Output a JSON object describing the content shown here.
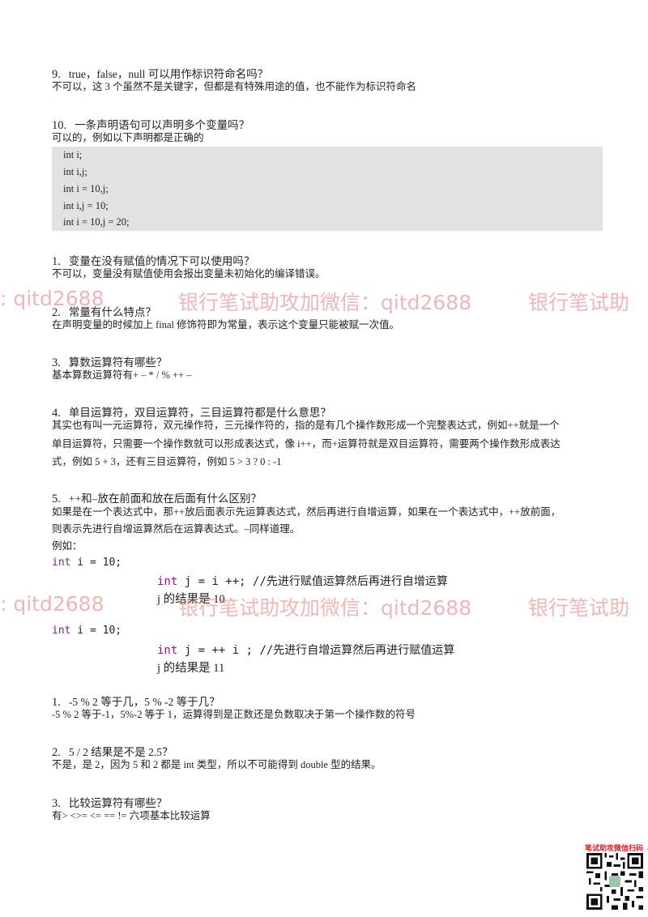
{
  "sections": [
    {
      "num": "9.",
      "q": "true，false，null 可以用作标识符命名吗？",
      "a": "不可以，这 3 个虽然不是关键字，但都是有特殊用途的值，也不能作为标识符命名"
    },
    {
      "num": "10.",
      "q": "一条声明语句可以声明多个变量吗？",
      "a": "可以的，例如以下声明都是正确的",
      "code": [
        "int i;",
        "int i,j;",
        "int i = 10,j;",
        "int i,j = 10;",
        "int i = 10,j = 20;"
      ]
    },
    {
      "num": "1.",
      "q": "变量在没有赋值的情况下可以使用吗？",
      "a": "不可以，变量没有赋值使用会报出变量未初始化的编译错误。"
    },
    {
      "num": "2.",
      "q": "常量有什么特点？",
      "a": "在声明变量的时候加上 final 修饰符即为常量，表示这个变量只能被赋一次值。"
    },
    {
      "num": "3.",
      "q": "算数运算符有哪些？",
      "a": "基本算数运算符有+ – * / % ++ –"
    },
    {
      "num": "4.",
      "q": "单目运算符，双目运算符，三目运算符都是什么意思？",
      "a_lines": [
        "其实也有叫一元运算符，双元操作符，三元操作符的，指的是有几个操作数形成一个完整表达式，例如++就是一个",
        "单目运算符，只需要一个操作数就可以形成表达式，像 i++，而+运算符就是双目运算符，需要两个操作数形成表达",
        "式，例如 5 + 3，还有三目运算符，例如 5 > 3 ? 0 : -1"
      ]
    },
    {
      "num": "5.",
      "q": "++和–放在前面和放在后面有什么区别？",
      "a_lines": [
        "如果是在一个表达式中，那++放后面表示先运算表达式，然后再进行自增运算，如果在一个表达式中，++放前面，",
        "则表示先进行自增运算然后在运算表达式。–同样道理。",
        "例如："
      ],
      "example1": {
        "kw": "int",
        "decl": " i = 10;",
        "kw2": "int",
        "stmt": " j = i ++; //先进行赋值运算然后再进行自增运算",
        "result": "j 的结果是 10"
      },
      "example2": {
        "kw": "int",
        "decl": " i = 10;",
        "kw2": "int",
        "stmt": " j = ++ i ; //先进行自增运算然后再进行赋值运算",
        "result": "j 的结果是 11"
      }
    },
    {
      "num": "1.",
      "q": "-5 % 2 等于几，5 % -2 等于几？",
      "a": "-5 % 2 等于-1，5%-2 等于 1，运算得到是正数还是负数取决于第一个操作数的符号"
    },
    {
      "num": "2.",
      "q": "5 / 2  结果是不是 2.5？",
      "a": "不是，是 2，因为 5 和 2 都是 int 类型，所以不可能得到 double 型的结果。"
    },
    {
      "num": "3.",
      "q": "比较运算符有哪些？",
      "a": "有> <>= <= == !=  六项基本比较运算"
    }
  ],
  "watermark": {
    "left": ": qitd2688",
    "mid": "银行笔试助攻加微信：qitd2688",
    "right": "银行笔试助"
  },
  "qr_label": "笔试助攻微信扫码 ↓",
  "colors": {
    "watermark": "#e87878",
    "code_bg": "#e2e2e2",
    "keyword": "#8b1a8b"
  }
}
